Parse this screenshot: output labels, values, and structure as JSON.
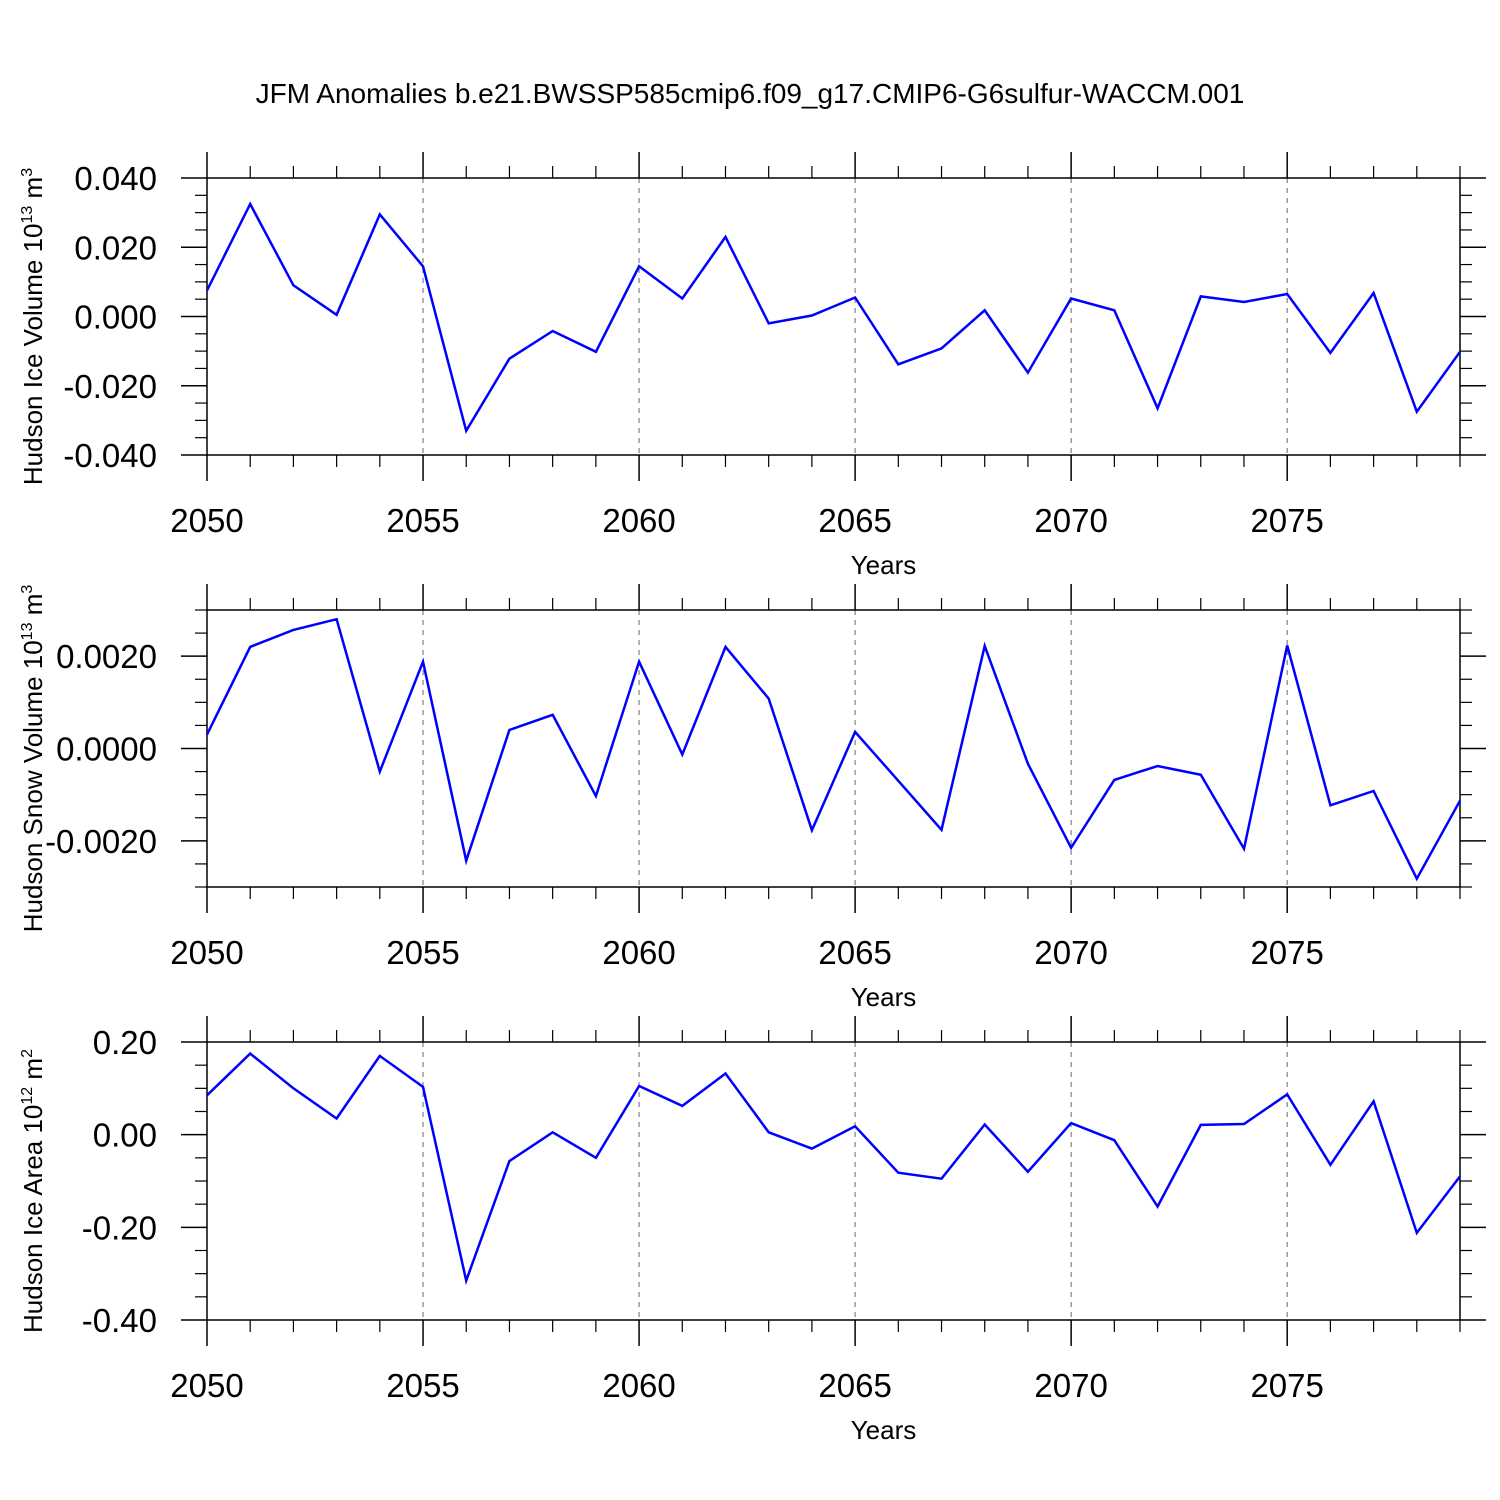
{
  "title": "JFM Anomalies b.e21.BWSSP585cmip6.f09_g17.CMIP6-G6sulfur-WACCM.001",
  "colors": {
    "line": "#0000ff",
    "axis": "#000000",
    "grid": "#808080"
  },
  "chart_data": [
    {
      "type": "line",
      "xlabel": "Years",
      "ylabel": {
        "text": "Hudson Ice Volume 10",
        "sup": "13",
        "unit": " m",
        "unit_sup": "3"
      },
      "xlim": [
        2050,
        2079
      ],
      "ylim": [
        -0.04,
        0.04
      ],
      "x_ticks": [
        2050,
        2055,
        2060,
        2065,
        2070,
        2075
      ],
      "x_tick_labels": [
        "2050",
        "2055",
        "2060",
        "2065",
        "2070",
        "2075"
      ],
      "y_ticks": [
        -0.04,
        -0.02,
        0.0,
        0.02,
        0.04
      ],
      "y_tick_labels": [
        "-0.040",
        "-0.020",
        "0.000",
        "0.020",
        "0.040"
      ],
      "y_minor_step": 0.005,
      "grid": "vertical-dashed",
      "x": [
        2050,
        2051,
        2052,
        2053,
        2054,
        2055,
        2056,
        2057,
        2058,
        2059,
        2060,
        2061,
        2062,
        2063,
        2064,
        2065,
        2066,
        2067,
        2068,
        2069,
        2070,
        2071,
        2072,
        2073,
        2074,
        2075,
        2076,
        2077,
        2078,
        2079
      ],
      "values": [
        0.0075,
        0.0325,
        0.009,
        0.0005,
        0.0295,
        0.0145,
        -0.033,
        -0.0122,
        -0.0042,
        -0.0102,
        0.0145,
        0.0052,
        0.023,
        -0.002,
        0.0003,
        0.0055,
        -0.0138,
        -0.0092,
        0.0018,
        -0.0162,
        0.0052,
        0.0018,
        -0.0265,
        0.0058,
        0.0042,
        0.0065,
        -0.0105,
        0.0068,
        -0.0275,
        -0.0102
      ]
    },
    {
      "type": "line",
      "xlabel": "Years",
      "ylabel": {
        "text": "Hudson Snow Volume 10",
        "sup": "13",
        "unit": " m",
        "unit_sup": "3"
      },
      "xlim": [
        2050,
        2079
      ],
      "ylim": [
        -0.003,
        0.003
      ],
      "x_ticks": [
        2050,
        2055,
        2060,
        2065,
        2070,
        2075
      ],
      "x_tick_labels": [
        "2050",
        "2055",
        "2060",
        "2065",
        "2070",
        "2075"
      ],
      "y_ticks": [
        -0.002,
        0.0,
        0.002
      ],
      "y_tick_labels": [
        "-0.0020",
        "0.0000",
        "0.0020"
      ],
      "y_minor_step": 0.0005,
      "grid": "vertical-dashed",
      "x": [
        2050,
        2051,
        2052,
        2053,
        2054,
        2055,
        2056,
        2057,
        2058,
        2059,
        2060,
        2061,
        2062,
        2063,
        2064,
        2065,
        2066,
        2067,
        2068,
        2069,
        2070,
        2071,
        2072,
        2073,
        2074,
        2075,
        2076,
        2077,
        2078,
        2079
      ],
      "values": [
        0.0003,
        0.0022,
        0.00257,
        0.0028,
        -0.0005,
        0.00188,
        -0.00243,
        0.0004,
        0.00073,
        -0.00103,
        0.00188,
        -0.00013,
        0.0022,
        0.00108,
        -0.00177,
        0.00036,
        -0.0007,
        -0.00176,
        0.00222,
        -0.00033,
        -0.00215,
        -0.00068,
        -0.00038,
        -0.00057,
        -0.00217,
        0.00223,
        -0.00123,
        -0.00092,
        -0.00282,
        -0.00113
      ]
    },
    {
      "type": "line",
      "xlabel": "Years",
      "ylabel": {
        "text": "Hudson Ice Area 10",
        "sup": "12",
        "unit": " m",
        "unit_sup": "2"
      },
      "xlim": [
        2050,
        2079
      ],
      "ylim": [
        -0.4,
        0.2
      ],
      "x_ticks": [
        2050,
        2055,
        2060,
        2065,
        2070,
        2075
      ],
      "x_tick_labels": [
        "2050",
        "2055",
        "2060",
        "2065",
        "2070",
        "2075"
      ],
      "y_ticks": [
        -0.4,
        -0.2,
        0.0,
        0.2
      ],
      "y_tick_labels": [
        "-0.40",
        "-0.20",
        "0.00",
        "0.20"
      ],
      "y_minor_step": 0.05,
      "grid": "vertical-dashed",
      "x": [
        2050,
        2051,
        2052,
        2053,
        2054,
        2055,
        2056,
        2057,
        2058,
        2059,
        2060,
        2061,
        2062,
        2063,
        2064,
        2065,
        2066,
        2067,
        2068,
        2069,
        2070,
        2071,
        2072,
        2073,
        2074,
        2075,
        2076,
        2077,
        2078,
        2079
      ],
      "values": [
        0.085,
        0.175,
        0.1,
        0.035,
        0.17,
        0.103,
        -0.315,
        -0.057,
        0.005,
        -0.05,
        0.105,
        0.062,
        0.132,
        0.005,
        -0.03,
        0.018,
        -0.082,
        -0.095,
        0.022,
        -0.08,
        0.025,
        -0.012,
        -0.155,
        0.021,
        0.023,
        0.087,
        -0.065,
        0.072,
        -0.212,
        -0.09
      ]
    }
  ]
}
